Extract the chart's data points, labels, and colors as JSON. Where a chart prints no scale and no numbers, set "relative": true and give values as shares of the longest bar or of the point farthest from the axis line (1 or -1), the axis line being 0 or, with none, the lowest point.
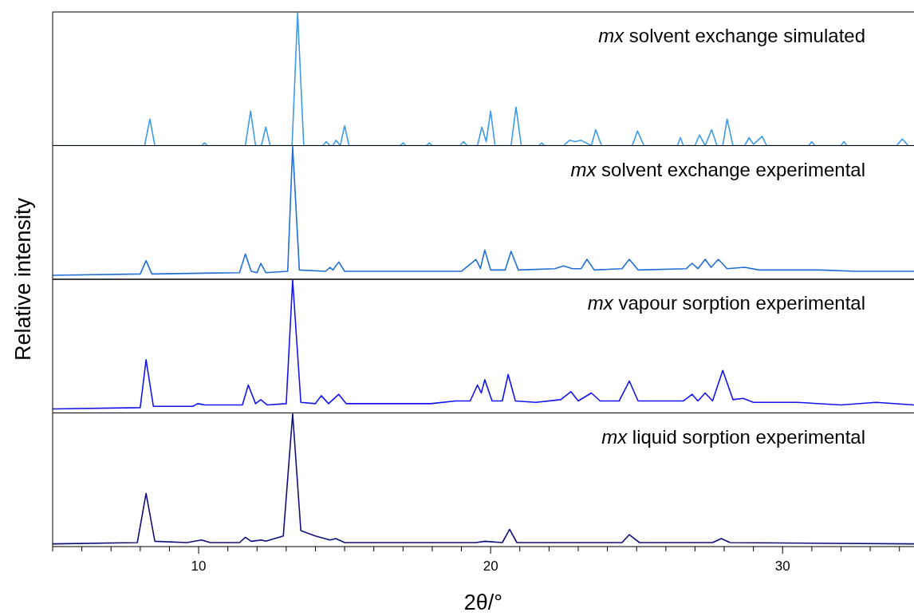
{
  "chart_data": [
    {
      "type": "line",
      "relative": true,
      "title": "mx solvent exchange simulated",
      "ylabel": "Relative intensity",
      "xlim": [
        5,
        34.5
      ],
      "tick_labels": false,
      "series": [
        {
          "color": "#3d9be9",
          "x": [
            5,
            8.15,
            8.33,
            8.5,
            10.1,
            10.2,
            10.3,
            11.6,
            11.78,
            11.95,
            12.15,
            12.3,
            12.45,
            13.2,
            13.39,
            13.6,
            14.25,
            14.37,
            14.5,
            14.6,
            14.7,
            14.85,
            15.0,
            15.15,
            16.9,
            17.0,
            17.1,
            17.8,
            17.9,
            18.0,
            18.95,
            19.07,
            19.2,
            19.55,
            19.7,
            19.85,
            20.0,
            20.15,
            20.7,
            20.87,
            21.05,
            21.65,
            21.75,
            21.85,
            22.5,
            22.7,
            22.9,
            23.1,
            23.45,
            23.6,
            23.8,
            24.85,
            25.03,
            25.25,
            26.4,
            26.5,
            26.6,
            27.0,
            27.15,
            27.35,
            27.57,
            27.75,
            27.95,
            28.1,
            28.3,
            28.7,
            28.85,
            29.0,
            29.3,
            29.45,
            30.9,
            31.0,
            31.1,
            32.0,
            32.1,
            32.2,
            33.9,
            34.1,
            34.3,
            34.5
          ],
          "values": [
            0,
            0,
            0.2,
            0,
            0,
            0.02,
            0,
            0,
            0.26,
            0,
            0,
            0.14,
            0,
            0,
            1,
            0,
            0,
            0.03,
            0,
            0,
            0.04,
            0,
            0.15,
            0,
            0,
            0.02,
            0,
            0,
            0.02,
            0,
            0,
            0.03,
            0,
            0,
            0.14,
            0.03,
            0.26,
            0,
            0,
            0.29,
            0,
            0,
            0.02,
            0,
            0,
            0.04,
            0.03,
            0.04,
            0,
            0.12,
            0,
            0,
            0.11,
            0,
            0,
            0.06,
            0,
            0,
            0.08,
            0,
            0.12,
            0,
            0,
            0.2,
            0,
            0,
            0.06,
            0.01,
            0.07,
            0,
            0,
            0.03,
            0,
            0,
            0.03,
            0,
            0,
            0.05,
            0,
            0
          ]
        }
      ]
    },
    {
      "type": "line",
      "relative": true,
      "title": "mx solvent exchange experimental",
      "xlim": [
        5,
        34.5
      ],
      "tick_labels": false,
      "series": [
        {
          "color": "#1f6fd6",
          "x": [
            5,
            8.0,
            8.2,
            8.4,
            11.4,
            11.6,
            11.8,
            12.0,
            12.13,
            12.3,
            13.05,
            13.22,
            13.45,
            14.35,
            14.5,
            14.6,
            14.8,
            15.0,
            19.0,
            19.5,
            19.65,
            19.8,
            20.0,
            20.5,
            20.7,
            20.95,
            22.2,
            22.5,
            22.8,
            23.1,
            23.3,
            23.55,
            24.5,
            24.75,
            25.05,
            26.7,
            26.9,
            27.1,
            27.35,
            27.55,
            27.8,
            28.1,
            28.7,
            29.2,
            31.3,
            32.5,
            34.3,
            34.5
          ],
          "values": [
            0.03,
            0.04,
            0.14,
            0.04,
            0.05,
            0.19,
            0.06,
            0.05,
            0.12,
            0.05,
            0.06,
            1,
            0.07,
            0.06,
            0.09,
            0.07,
            0.13,
            0.06,
            0.06,
            0.15,
            0.08,
            0.22,
            0.07,
            0.07,
            0.21,
            0.07,
            0.08,
            0.1,
            0.08,
            0.08,
            0.15,
            0.07,
            0.08,
            0.15,
            0.07,
            0.08,
            0.12,
            0.08,
            0.15,
            0.09,
            0.15,
            0.08,
            0.09,
            0.07,
            0.07,
            0.06,
            0.06,
            0.06
          ]
        }
      ]
    },
    {
      "type": "line",
      "relative": true,
      "title": "mx vapour sorption experimental",
      "xlim": [
        5,
        34.5
      ],
      "tick_labels": false,
      "series": [
        {
          "color": "#1414ee",
          "x": [
            5,
            8.0,
            8.2,
            8.45,
            9.8,
            9.97,
            10.2,
            11.5,
            11.7,
            11.95,
            12.13,
            12.35,
            13.0,
            13.22,
            13.5,
            14.0,
            14.2,
            14.45,
            14.8,
            15.05,
            17.95,
            18.8,
            19.3,
            19.55,
            19.68,
            19.8,
            20.05,
            20.4,
            20.6,
            20.85,
            21.55,
            22.4,
            22.75,
            23.0,
            23.45,
            23.75,
            24.4,
            24.75,
            25.05,
            26.6,
            26.9,
            27.1,
            27.35,
            27.6,
            27.95,
            28.3,
            28.65,
            29.0,
            30.5,
            32.0,
            33.2,
            34.5
          ],
          "values": [
            0.03,
            0.04,
            0.4,
            0.05,
            0.05,
            0.07,
            0.06,
            0.06,
            0.21,
            0.07,
            0.1,
            0.06,
            0.07,
            1,
            0.08,
            0.07,
            0.13,
            0.07,
            0.14,
            0.07,
            0.07,
            0.09,
            0.09,
            0.21,
            0.15,
            0.25,
            0.09,
            0.09,
            0.29,
            0.09,
            0.08,
            0.1,
            0.16,
            0.09,
            0.15,
            0.09,
            0.09,
            0.24,
            0.09,
            0.09,
            0.14,
            0.09,
            0.15,
            0.09,
            0.32,
            0.1,
            0.11,
            0.08,
            0.08,
            0.06,
            0.08,
            0.06
          ]
        }
      ]
    },
    {
      "type": "line",
      "relative": true,
      "title": "mx liquid sorption experimental",
      "xlabel": "2θ/°",
      "xlim": [
        5,
        34.5
      ],
      "tick_labels": "x",
      "xticks": [
        {
          "value": 5,
          "label": null
        },
        {
          "value": 6,
          "label": null
        },
        {
          "value": 7,
          "label": null
        },
        {
          "value": 8,
          "label": null
        },
        {
          "value": 9,
          "label": null
        },
        10,
        {
          "value": 11,
          "label": null
        },
        {
          "value": 12,
          "label": null
        },
        {
          "value": 13,
          "label": null
        },
        {
          "value": 14,
          "label": null
        },
        {
          "value": 15,
          "label": null
        },
        {
          "value": 16,
          "label": null
        },
        {
          "value": 17,
          "label": null
        },
        {
          "value": 18,
          "label": null
        },
        {
          "value": 19,
          "label": null
        },
        20,
        {
          "value": 21,
          "label": null
        },
        {
          "value": 22,
          "label": null
        },
        {
          "value": 23,
          "label": null
        },
        {
          "value": 24,
          "label": null
        },
        {
          "value": 25,
          "label": null
        },
        {
          "value": 26,
          "label": null
        },
        {
          "value": 27,
          "label": null
        },
        {
          "value": 28,
          "label": null
        },
        {
          "value": 29,
          "label": null
        },
        30,
        {
          "value": 31,
          "label": null
        },
        {
          "value": 32,
          "label": null
        },
        {
          "value": 33,
          "label": null
        },
        {
          "value": 34,
          "label": null
        }
      ],
      "series": [
        {
          "color": "#10107a",
          "x": [
            5,
            7.9,
            8.2,
            8.5,
            9.6,
            10.1,
            10.4,
            11.4,
            11.6,
            11.8,
            12.15,
            12.3,
            12.9,
            13.22,
            13.5,
            14.0,
            14.5,
            14.7,
            15.0,
            19.5,
            19.8,
            20.4,
            20.65,
            20.9,
            23.5,
            24.5,
            24.75,
            25.1,
            27.6,
            27.9,
            28.2,
            34.5
          ],
          "values": [
            0.02,
            0.03,
            0.4,
            0.04,
            0.03,
            0.05,
            0.03,
            0.03,
            0.07,
            0.04,
            0.05,
            0.04,
            0.08,
            1,
            0.12,
            0.08,
            0.05,
            0.06,
            0.03,
            0.03,
            0.04,
            0.03,
            0.13,
            0.03,
            0.03,
            0.03,
            0.09,
            0.03,
            0.03,
            0.06,
            0.03,
            0.02
          ]
        }
      ]
    }
  ]
}
